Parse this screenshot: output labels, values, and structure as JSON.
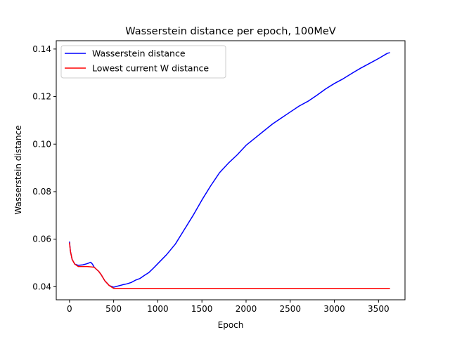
{
  "chart_data": {
    "type": "line",
    "title": "Wasserstein distance per epoch, 100MeV",
    "xlabel": "Epoch",
    "ylabel": "Wasserstein distance",
    "xlim": [
      -150,
      3800
    ],
    "ylim": [
      0.0345,
      0.1435
    ],
    "xticks": [
      0,
      500,
      1000,
      1500,
      2000,
      2500,
      3000,
      3500
    ],
    "xtick_labels": [
      "0",
      "500",
      "1000",
      "1500",
      "2000",
      "2500",
      "3000",
      "3500"
    ],
    "yticks": [
      0.04,
      0.06,
      0.08,
      0.1,
      0.12,
      0.14
    ],
    "ytick_labels": [
      "0.04",
      "0.06",
      "0.08",
      "0.10",
      "0.12",
      "0.14"
    ],
    "grid": false,
    "legend_position": "upper-left",
    "series": [
      {
        "name": "Wasserstein distance",
        "color": "#0000ff",
        "x": [
          0,
          10,
          30,
          60,
          100,
          150,
          200,
          240,
          260,
          280,
          300,
          330,
          360,
          400,
          450,
          500,
          550,
          600,
          650,
          700,
          750,
          800,
          850,
          900,
          950,
          1000,
          1100,
          1200,
          1300,
          1400,
          1500,
          1600,
          1700,
          1800,
          1900,
          2000,
          2100,
          2200,
          2300,
          2400,
          2500,
          2600,
          2700,
          2800,
          2900,
          3000,
          3100,
          3200,
          3300,
          3400,
          3500,
          3600,
          3630
        ],
        "y": [
          0.059,
          0.055,
          0.0515,
          0.0495,
          0.049,
          0.0492,
          0.0497,
          0.0503,
          0.0495,
          0.0482,
          0.0475,
          0.0465,
          0.045,
          0.0425,
          0.0405,
          0.0398,
          0.0403,
          0.0408,
          0.0412,
          0.0418,
          0.0428,
          0.0435,
          0.0448,
          0.046,
          0.0478,
          0.0497,
          0.0535,
          0.058,
          0.064,
          0.07,
          0.0765,
          0.0825,
          0.088,
          0.092,
          0.0955,
          0.0995,
          0.1025,
          0.1055,
          0.1085,
          0.111,
          0.1135,
          0.116,
          0.118,
          0.1205,
          0.1232,
          0.1255,
          0.1275,
          0.1298,
          0.132,
          0.134,
          0.136,
          0.1382,
          0.1385
        ]
      },
      {
        "name": "Lowest current W distance",
        "color": "#ff0000",
        "x": [
          0,
          10,
          30,
          60,
          100,
          150,
          200,
          280,
          300,
          330,
          360,
          400,
          450,
          500,
          3630
        ],
        "y": [
          0.0585,
          0.055,
          0.0515,
          0.0495,
          0.0485,
          0.0485,
          0.0485,
          0.0482,
          0.0475,
          0.0465,
          0.045,
          0.0425,
          0.0405,
          0.0393,
          0.0393
        ]
      }
    ]
  }
}
